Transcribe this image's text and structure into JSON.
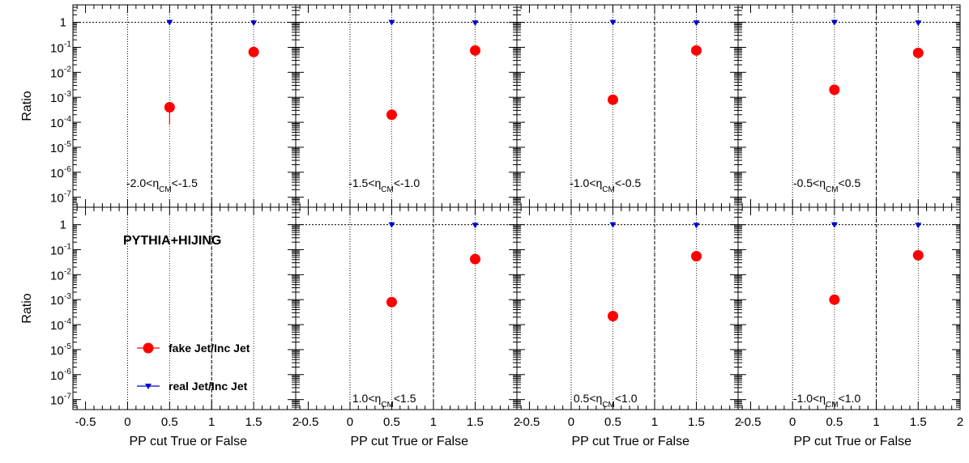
{
  "chart_data": [
    {
      "type": "scatter",
      "ylabel": "Ratio",
      "xlabel": "",
      "label_parts": [
        "-2.0<η",
        "CM",
        "<-1.5"
      ],
      "xlim": [
        -0.65,
        2.0
      ],
      "ylim_log10": [
        -7.4,
        0.7
      ],
      "series": [
        {
          "name": "fake Jet/Inc Jet",
          "x": [
            0.5,
            1.5
          ],
          "y": [
            0.0004,
            0.065
          ],
          "err_low": [
            0.00032,
            0.0
          ],
          "err_high": [
            0.0002,
            0.0
          ]
        },
        {
          "name": "real Jet/Inc Jet",
          "x": [
            0.5,
            1.5
          ],
          "y": [
            1.0,
            0.95
          ]
        }
      ]
    },
    {
      "type": "scatter",
      "ylabel": "",
      "xlabel": "",
      "label_parts": [
        "-1.5<η",
        "CM",
        "<-1.0"
      ],
      "xlim": [
        -0.65,
        2.0
      ],
      "ylim_log10": [
        -7.4,
        0.7
      ],
      "series": [
        {
          "name": "fake Jet/Inc Jet",
          "x": [
            0.5,
            1.5
          ],
          "y": [
            0.0002,
            0.075
          ]
        },
        {
          "name": "real Jet/Inc Jet",
          "x": [
            0.5,
            1.5
          ],
          "y": [
            1.0,
            0.95
          ]
        }
      ]
    },
    {
      "type": "scatter",
      "ylabel": "",
      "xlabel": "",
      "label_parts": [
        "-1.0<η",
        "CM",
        "<-0.5"
      ],
      "xlim": [
        -0.65,
        2.0
      ],
      "ylim_log10": [
        -7.4,
        0.7
      ],
      "series": [
        {
          "name": "fake Jet/Inc Jet",
          "x": [
            0.5,
            1.5
          ],
          "y": [
            0.0008,
            0.075
          ]
        },
        {
          "name": "real Jet/Inc Jet",
          "x": [
            0.5,
            1.5
          ],
          "y": [
            1.0,
            0.95
          ]
        }
      ]
    },
    {
      "type": "scatter",
      "ylabel": "",
      "xlabel": "",
      "label_parts": [
        "-0.5<η",
        "CM",
        "<0.5"
      ],
      "xlim": [
        -0.65,
        2.0
      ],
      "ylim_log10": [
        -7.4,
        0.7
      ],
      "series": [
        {
          "name": "fake Jet/Inc Jet",
          "x": [
            0.5,
            1.5
          ],
          "y": [
            0.002,
            0.06
          ]
        },
        {
          "name": "real Jet/Inc Jet",
          "x": [
            0.5,
            1.5
          ],
          "y": [
            1.0,
            0.95
          ]
        }
      ]
    },
    {
      "type": "scatter",
      "ylabel": "Ratio",
      "xlabel": "PP cut True or False",
      "label_parts": [],
      "title": "PYTHIA+HIJING",
      "xlim": [
        -0.65,
        2.0
      ],
      "ylim_log10": [
        -7.4,
        0.7
      ],
      "series": []
    },
    {
      "type": "scatter",
      "ylabel": "",
      "xlabel": "PP cut True or False",
      "label_parts": [
        "1.0<η",
        "CM",
        "<1.5"
      ],
      "xlim": [
        -0.65,
        2.0
      ],
      "ylim_log10": [
        -7.4,
        0.7
      ],
      "series": [
        {
          "name": "fake Jet/Inc Jet",
          "x": [
            0.5,
            1.5
          ],
          "y": [
            0.0008,
            0.042
          ]
        },
        {
          "name": "real Jet/Inc Jet",
          "x": [
            0.5,
            1.5
          ],
          "y": [
            1.0,
            0.95
          ]
        }
      ]
    },
    {
      "type": "scatter",
      "ylabel": "",
      "xlabel": "PP cut True or False",
      "label_parts": [
        "0.5<η",
        "CM",
        "<1.0"
      ],
      "xlim": [
        -0.65,
        2.0
      ],
      "ylim_log10": [
        -7.4,
        0.7
      ],
      "series": [
        {
          "name": "fake Jet/Inc Jet",
          "x": [
            0.5,
            1.5
          ],
          "y": [
            0.00022,
            0.055
          ]
        },
        {
          "name": "real Jet/Inc Jet",
          "x": [
            0.5,
            1.5
          ],
          "y": [
            1.0,
            0.95
          ]
        }
      ]
    },
    {
      "type": "scatter",
      "ylabel": "",
      "xlabel": "PP cut True or False",
      "label_parts": [
        "-1.0<η",
        "CM",
        "<1.0"
      ],
      "xlim": [
        -0.65,
        2.0
      ],
      "ylim_log10": [
        -7.4,
        0.7
      ],
      "series": [
        {
          "name": "fake Jet/Inc Jet",
          "x": [
            0.5,
            1.5
          ],
          "y": [
            0.001,
            0.06
          ]
        },
        {
          "name": "real Jet/Inc Jet",
          "x": [
            0.5,
            1.5
          ],
          "y": [
            1.0,
            0.95
          ]
        }
      ]
    }
  ],
  "legend": {
    "fake_label": "fake Jet/Inc Jet",
    "real_label": "real Jet/Inc Jet"
  },
  "x_ticks": [
    "-0.5",
    "0",
    "0.5",
    "1",
    "1.5",
    "2"
  ],
  "y_ticks": [
    {
      "exp": 0,
      "text": "1"
    },
    {
      "exp": -1,
      "text": "10",
      "sup": "-1"
    },
    {
      "exp": -2,
      "text": "10",
      "sup": "-2"
    },
    {
      "exp": -3,
      "text": "10",
      "sup": "-3"
    },
    {
      "exp": -4,
      "text": "10",
      "sup": "-4"
    },
    {
      "exp": -5,
      "text": "10",
      "sup": "-5"
    },
    {
      "exp": -6,
      "text": "10",
      "sup": "-6"
    },
    {
      "exp": -7,
      "text": "10",
      "sup": "-7"
    }
  ],
  "colors": {
    "fake": "#ff0000",
    "real": "#0000cc",
    "axis": "#000000"
  }
}
